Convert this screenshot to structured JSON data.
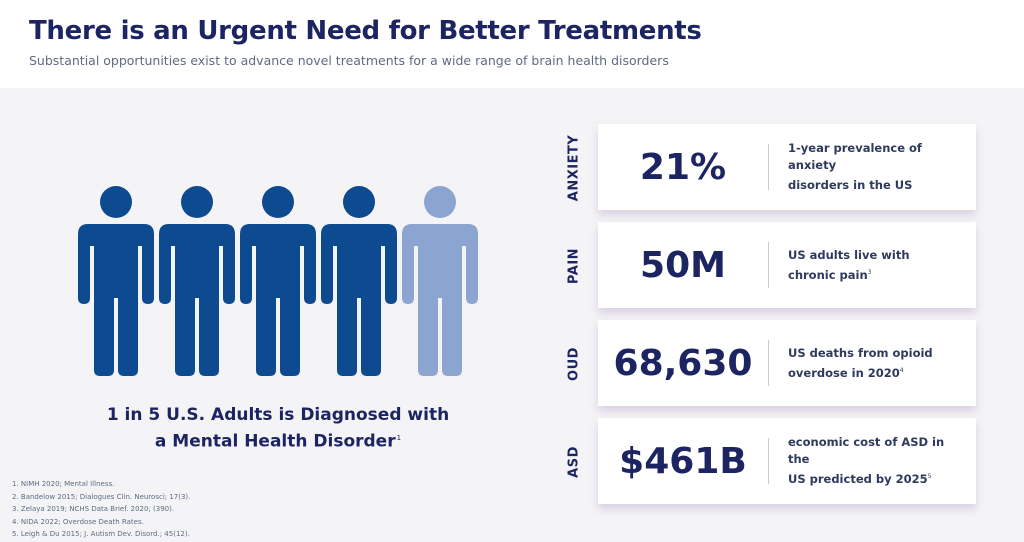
{
  "header": {
    "title": "There is an Urgent Need for Better Treatments",
    "subtitle": "Substantial opportunities exist to advance novel treatments for a wide range of brain health disorders"
  },
  "infographic": {
    "people_total": 5,
    "people_highlighted": 1,
    "dark_color": "#0e4a8f",
    "light_color": "#8ba4d0",
    "caption_line1": "1 in 5 U.S. Adults is Diagnosed with",
    "caption_line2": "a Mental Health Disorder",
    "caption_ref": "1"
  },
  "stats": [
    {
      "label": "ANXIETY",
      "value": "21%",
      "desc_line1": "1-year prevalence of anxiety",
      "desc_line2": "disorders in the US",
      "ref": ""
    },
    {
      "label": "PAIN",
      "value": "50M",
      "desc_line1": "US adults live with",
      "desc_line2": "chronic pain",
      "ref": "3"
    },
    {
      "label": "OUD",
      "value": "68,630",
      "desc_line1": "US deaths from opioid",
      "desc_line2": "overdose in 2020",
      "ref": "4"
    },
    {
      "label": "ASD",
      "value": "$461B",
      "desc_line1": "economic cost of ASD in the",
      "desc_line2": "US predicted by 2025",
      "ref": "5"
    }
  ],
  "footnotes": [
    "1. NIMH 2020; Mental Illness.",
    "2. Bandelow 2015; Dialogues Clin. Neurosci; 17(3).",
    "3. Zelaya 2019; NCHS Data Brief. 2020; (390).",
    "4. NIDA 2022; Overdose Death Rates.",
    "5. Leigh & Du 2015; J. Autism Dev. Disord.; 45(12)."
  ]
}
